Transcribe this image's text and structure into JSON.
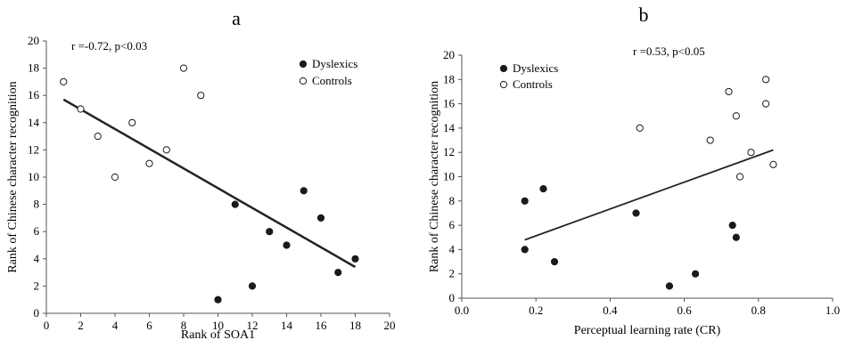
{
  "chart_data": [
    {
      "type": "scatter",
      "panel_label": "a",
      "xlabel": "Rank of SOA1",
      "ylabel": "Rank of Chinese character recognition",
      "xlim": [
        0,
        20
      ],
      "ylim": [
        0,
        20
      ],
      "xticks": [
        0,
        2,
        4,
        6,
        8,
        10,
        12,
        14,
        16,
        18,
        20
      ],
      "yticks": [
        0,
        2,
        4,
        6,
        8,
        10,
        12,
        14,
        16,
        18,
        20
      ],
      "annotation": "r =-0.72, p<0.03",
      "legend_position": "top-right",
      "series": [
        {
          "name": "Dyslexics",
          "marker": "filled-circle",
          "points": [
            [
              10,
              1
            ],
            [
              11,
              8
            ],
            [
              12,
              2
            ],
            [
              13,
              6
            ],
            [
              14,
              5
            ],
            [
              15,
              9
            ],
            [
              16,
              7
            ],
            [
              17,
              3
            ],
            [
              18,
              4
            ]
          ]
        },
        {
          "name": "Controls",
          "marker": "open-circle",
          "points": [
            [
              1,
              17
            ],
            [
              2,
              15
            ],
            [
              3,
              13
            ],
            [
              4,
              10
            ],
            [
              5,
              14
            ],
            [
              6,
              11
            ],
            [
              7,
              12
            ],
            [
              8,
              18
            ],
            [
              9,
              16
            ]
          ]
        }
      ],
      "trendline": {
        "x": [
          1,
          18
        ],
        "y": [
          15.7,
          3.4
        ]
      }
    },
    {
      "type": "scatter",
      "panel_label": "b",
      "xlabel": "Perceptual learning rate (CR)",
      "ylabel": "Rank of Chinese character recognition",
      "xlim": [
        0.0,
        1.0
      ],
      "ylim": [
        0,
        20
      ],
      "xticks": [
        "0.0",
        "0.2",
        "0.4",
        "0.6",
        "0.8",
        "1.0"
      ],
      "yticks": [
        0,
        2,
        4,
        6,
        8,
        10,
        12,
        14,
        16,
        18,
        20
      ],
      "annotation": "r =0.53, p<0.05",
      "legend_position": "top-left",
      "series": [
        {
          "name": "Dyslexics",
          "marker": "filled-circle",
          "points": [
            [
              0.17,
              8
            ],
            [
              0.17,
              4
            ],
            [
              0.22,
              9
            ],
            [
              0.25,
              3
            ],
            [
              0.47,
              7
            ],
            [
              0.56,
              1
            ],
            [
              0.63,
              2
            ],
            [
              0.73,
              6
            ],
            [
              0.74,
              5
            ]
          ]
        },
        {
          "name": "Controls",
          "marker": "open-circle",
          "points": [
            [
              0.48,
              14
            ],
            [
              0.67,
              13
            ],
            [
              0.72,
              17
            ],
            [
              0.74,
              15
            ],
            [
              0.75,
              10
            ],
            [
              0.78,
              12
            ],
            [
              0.82,
              18
            ],
            [
              0.82,
              16
            ],
            [
              0.84,
              11
            ]
          ]
        }
      ],
      "trendline": {
        "x": [
          0.17,
          0.84
        ],
        "y": [
          4.8,
          12.2
        ]
      }
    }
  ]
}
